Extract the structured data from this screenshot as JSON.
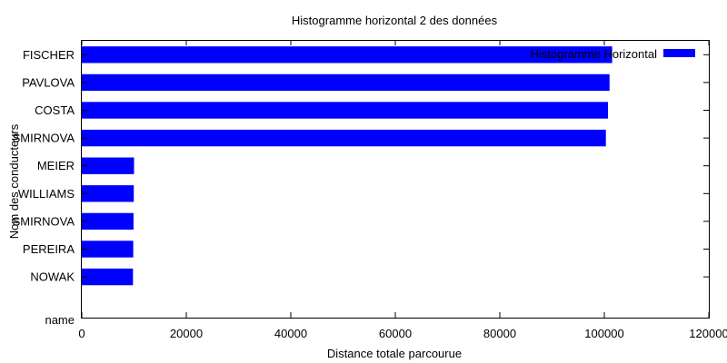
{
  "chart_data": {
    "type": "bar",
    "orientation": "horizontal",
    "title": "Histogramme horizontal 2 des données",
    "xlabel": "Distance totale parcourue",
    "ylabel": "Nom des conducteurs",
    "y_header": "name",
    "categories": [
      "FISCHER",
      "PAVLOVA",
      "COSTA",
      "SMIRNOVA",
      "MEIER",
      "WILLIAMS",
      "SMIRNOVA",
      "PEREIRA",
      "NOWAK"
    ],
    "series": [
      {
        "name": "Histogramme Horizontal",
        "color": "#0000ff",
        "values": [
          101500,
          101000,
          100700,
          100300,
          10000,
          9950,
          9900,
          9850,
          9800
        ]
      }
    ],
    "xlim": [
      0,
      120000
    ],
    "xticks": [
      "0",
      "20000",
      "40000",
      "60000",
      "80000",
      "100000",
      "120000"
    ],
    "grid": false,
    "legend_position": "top-right"
  }
}
